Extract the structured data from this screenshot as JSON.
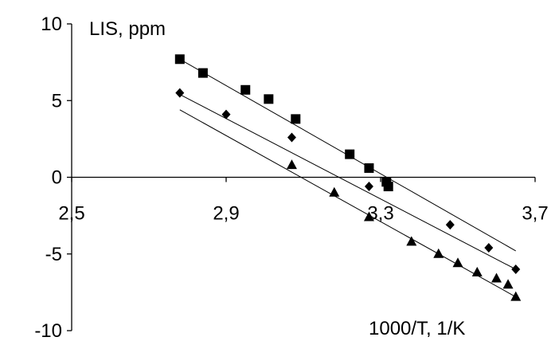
{
  "chart_data": {
    "type": "scatter",
    "ylabel": "LIS, ppm",
    "xlabel": "1000/T, 1/K",
    "xlim": [
      2.5,
      3.7
    ],
    "ylim": [
      -10,
      10
    ],
    "x_ticks": [
      "2,5",
      "2,9",
      "3,3",
      "3,7"
    ],
    "y_ticks": [
      "10",
      "5",
      "0",
      "-5",
      "-10"
    ],
    "x_tick_values": [
      2.5,
      2.9,
      3.3,
      3.7
    ],
    "y_tick_values": [
      10,
      5,
      0,
      -5,
      -10
    ],
    "grid": false,
    "series": [
      {
        "marker": "square",
        "x": [
          2.78,
          2.84,
          2.95,
          3.01,
          3.08,
          3.22,
          3.27,
          3.315,
          3.32
        ],
        "y": [
          7.7,
          6.8,
          5.7,
          5.1,
          3.8,
          1.5,
          0.6,
          -0.3,
          -0.6
        ],
        "fit": {
          "x": [
            2.78,
            3.65
          ],
          "y": [
            7.7,
            -4.8
          ]
        }
      },
      {
        "marker": "diamond",
        "x": [
          2.78,
          2.9,
          3.07,
          3.27,
          3.48,
          3.58,
          3.65
        ],
        "y": [
          5.5,
          4.1,
          2.6,
          -0.6,
          -3.1,
          -4.6,
          -6.0
        ],
        "fit": {
          "x": [
            2.78,
            3.65
          ],
          "y": [
            5.4,
            -6.0
          ]
        }
      },
      {
        "marker": "triangle",
        "x": [
          3.07,
          3.18,
          3.27,
          3.38,
          3.45,
          3.5,
          3.55,
          3.6,
          3.63,
          3.65
        ],
        "y": [
          0.8,
          -1.0,
          -2.6,
          -4.2,
          -5.0,
          -5.6,
          -6.2,
          -6.6,
          -7.0,
          -7.8
        ],
        "fit": {
          "x": [
            2.78,
            3.65
          ],
          "y": [
            4.4,
            -7.8
          ]
        }
      }
    ]
  }
}
